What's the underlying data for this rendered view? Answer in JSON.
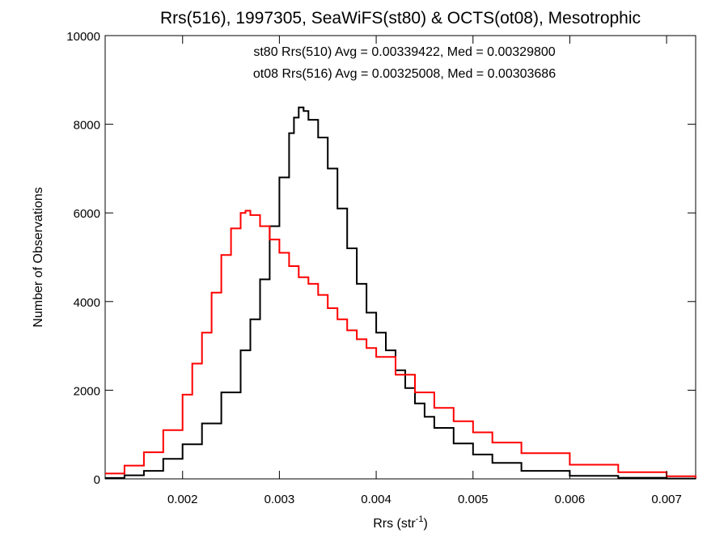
{
  "chart_data": {
    "type": "line",
    "title": "Rrs(516), 1997305, SeaWiFS(st80) & OCTS(ot08), Mesotrophic",
    "xlabel_base": "Rrs (str",
    "xlabel_sup": "-1",
    "xlabel_end": ")",
    "ylabel": "Number of Observations",
    "xlim": [
      0.0012,
      0.0073
    ],
    "ylim": [
      0,
      10000
    ],
    "x_ticks": [
      0.002,
      0.003,
      0.004,
      0.005,
      0.006,
      0.007
    ],
    "x_tick_labels": [
      "0.002",
      "0.003",
      "0.004",
      "0.005",
      "0.006",
      "0.007"
    ],
    "y_ticks": [
      0,
      2000,
      4000,
      6000,
      8000,
      10000
    ],
    "y_tick_labels": [
      "0",
      "2000",
      "4000",
      "6000",
      "8000",
      "10000"
    ],
    "grid": false,
    "step_style": "histogram",
    "series": [
      {
        "name": "st80",
        "label": "st80 Rrs(510) Avg = 0.00339422, Med = 0.00329800",
        "color": "#000000",
        "x": [
          0.0012,
          0.0014,
          0.0016,
          0.0018,
          0.002,
          0.0022,
          0.0024,
          0.0026,
          0.0027,
          0.0028,
          0.0029,
          0.003,
          0.0031,
          0.00315,
          0.0032,
          0.00325,
          0.0033,
          0.0034,
          0.0035,
          0.0036,
          0.0037,
          0.0038,
          0.0039,
          0.004,
          0.0041,
          0.0042,
          0.0043,
          0.0044,
          0.0045,
          0.0046,
          0.0048,
          0.005,
          0.0052,
          0.0055,
          0.006,
          0.0065,
          0.007,
          0.0073
        ],
        "y": [
          20,
          80,
          180,
          450,
          780,
          1250,
          1950,
          2900,
          3600,
          4500,
          5700,
          6800,
          7800,
          8150,
          8380,
          8300,
          8100,
          7700,
          7000,
          6100,
          5200,
          4400,
          3750,
          3300,
          2900,
          2450,
          2050,
          1700,
          1400,
          1150,
          800,
          550,
          360,
          180,
          70,
          25,
          8,
          5
        ]
      },
      {
        "name": "ot08",
        "label": "ot08 Rrs(516) Avg = 0.00325008, Med = 0.00303686",
        "color": "#ff0000",
        "x": [
          0.0012,
          0.0014,
          0.0016,
          0.0018,
          0.002,
          0.0021,
          0.0022,
          0.0023,
          0.0024,
          0.0025,
          0.0026,
          0.00265,
          0.0027,
          0.0028,
          0.0029,
          0.003,
          0.0031,
          0.0032,
          0.0033,
          0.0034,
          0.0035,
          0.0036,
          0.0037,
          0.0038,
          0.0039,
          0.004,
          0.0042,
          0.0044,
          0.0046,
          0.0048,
          0.005,
          0.0052,
          0.0055,
          0.006,
          0.0065,
          0.007,
          0.0073
        ],
        "y": [
          120,
          300,
          600,
          1100,
          1900,
          2600,
          3300,
          4200,
          5050,
          5650,
          6000,
          6050,
          5950,
          5700,
          5400,
          5100,
          4800,
          4550,
          4400,
          4150,
          3850,
          3600,
          3350,
          3150,
          2950,
          2750,
          2350,
          1950,
          1600,
          1300,
          1050,
          820,
          580,
          320,
          150,
          60,
          20
        ]
      }
    ]
  }
}
